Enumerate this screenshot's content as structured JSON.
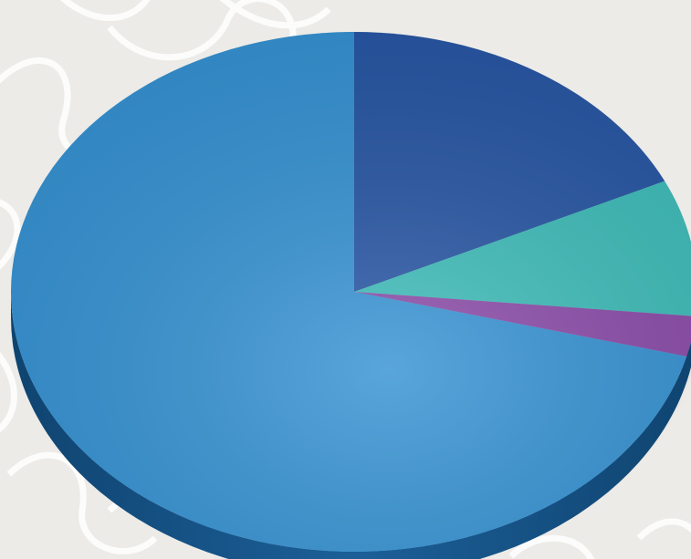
{
  "chart_data": {
    "type": "pie",
    "style": "3d",
    "slices": [
      {
        "value": 18,
        "color": "#2756a4"
      },
      {
        "value": 8.5,
        "color": "#3dbcb9"
      },
      {
        "value": 2.5,
        "color": "#8a4aa8"
      },
      {
        "value": 71,
        "color": "#3592d3"
      }
    ],
    "start_angle_deg": 90,
    "direction": "clockwise",
    "legend": "none",
    "title": ""
  },
  "colors": {
    "background": "#ecebe8",
    "pattern_line": "#ffffff",
    "side_dark": "#0f4470",
    "side_light": "#2a7bbd"
  }
}
